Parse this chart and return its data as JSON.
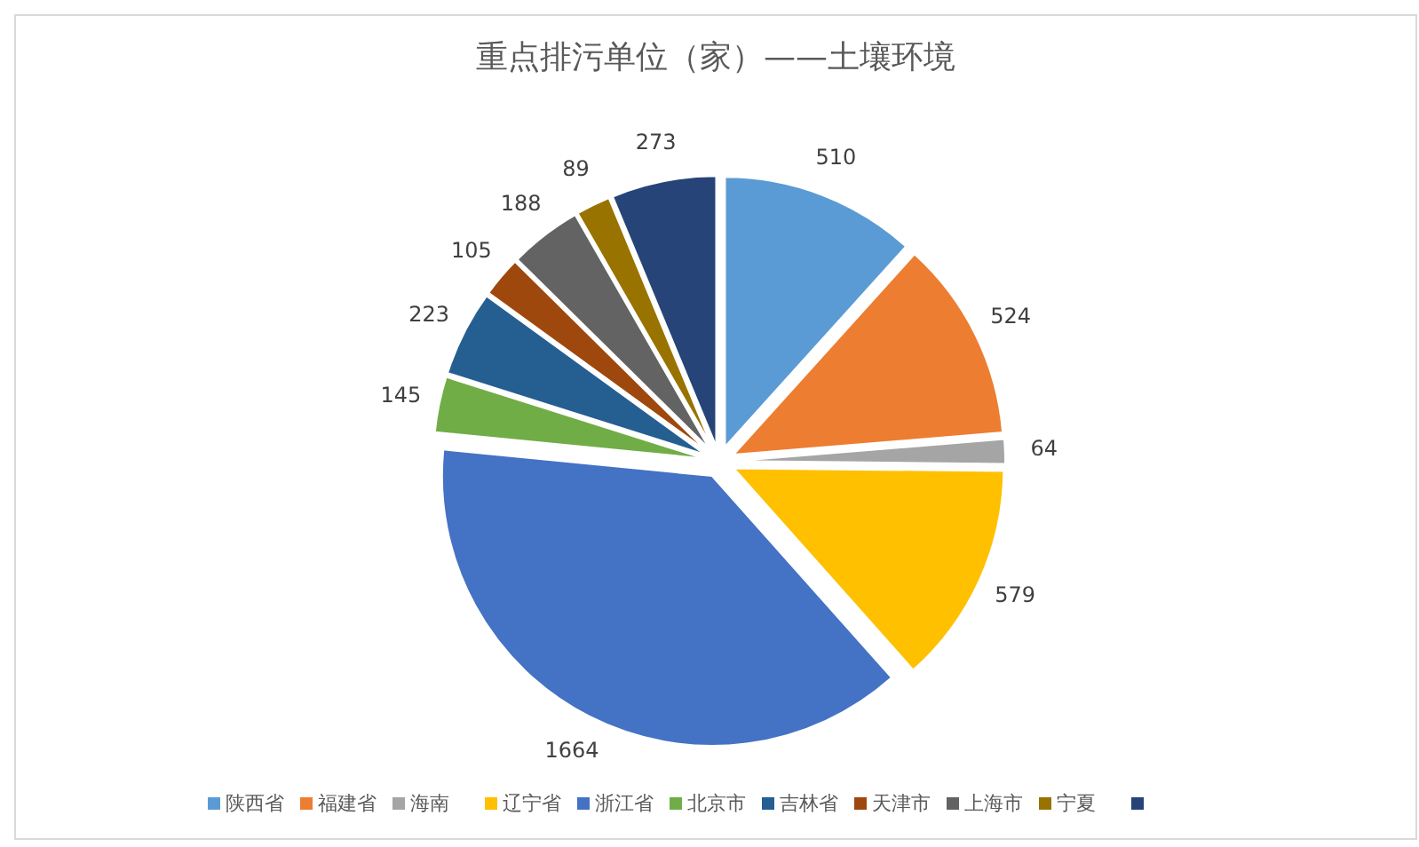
{
  "chart_data": {
    "type": "pie",
    "title": "重点排污单位（家）——土壤环境",
    "categories": [
      "陕西省",
      "福建省",
      "海南",
      "辽宁省",
      "浙江省",
      "北京市",
      "吉林省",
      "天津市",
      "上海市",
      "宁夏",
      null
    ],
    "values": [
      510,
      524,
      64,
      579,
      1664,
      145,
      223,
      105,
      188,
      89,
      273
    ],
    "colors": [
      "#5b9bd5",
      "#ed7d31",
      "#a5a5a5",
      "#ffc000",
      "#4472c4",
      "#70ad47",
      "#255e91",
      "#9e480e",
      "#636363",
      "#997300",
      "#264478"
    ],
    "data_labels": true,
    "legend": "bottom"
  }
}
